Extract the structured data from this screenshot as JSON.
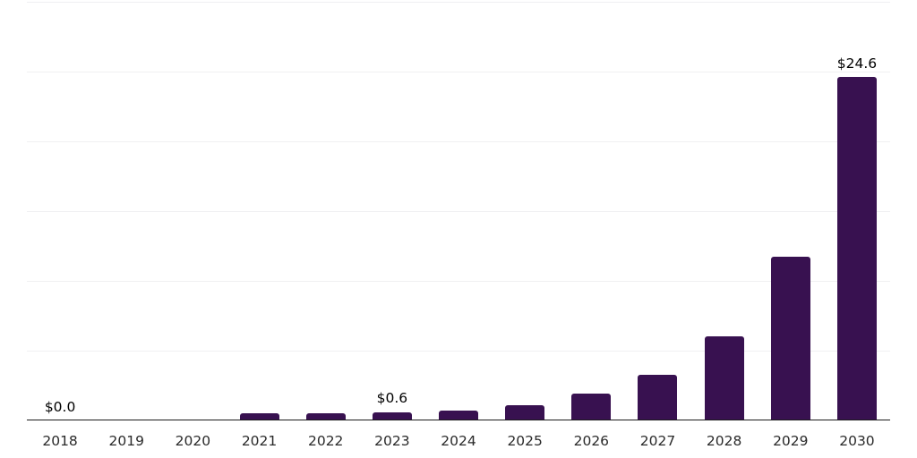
{
  "chart_data": {
    "type": "bar",
    "title": "",
    "xlabel": "",
    "ylabel": "",
    "categories": [
      "2018",
      "2019",
      "2020",
      "2021",
      "2022",
      "2023",
      "2024",
      "2025",
      "2026",
      "2027",
      "2028",
      "2029",
      "2030"
    ],
    "values": [
      0.0,
      0.0,
      0.0,
      0.5,
      0.5,
      0.6,
      0.7,
      1.1,
      1.9,
      3.3,
      6.0,
      11.7,
      24.6
    ],
    "point_labels": [
      "$0.0",
      "",
      "",
      "",
      "",
      "$0.6",
      "",
      "",
      "",
      "",
      "",
      "",
      "$24.6"
    ],
    "ylim": [
      0,
      30
    ],
    "gridline_interval": 5,
    "grid": "horizontal",
    "legend": "none",
    "y_axis_tick_labels_visible": false,
    "colors": {
      "bar": "#381150",
      "gridline": "#f0f0f2",
      "axis_line": "#1c1c1c",
      "tick_label": "#2a2a2a",
      "value_label": "#000000",
      "background": "#ffffff"
    }
  }
}
